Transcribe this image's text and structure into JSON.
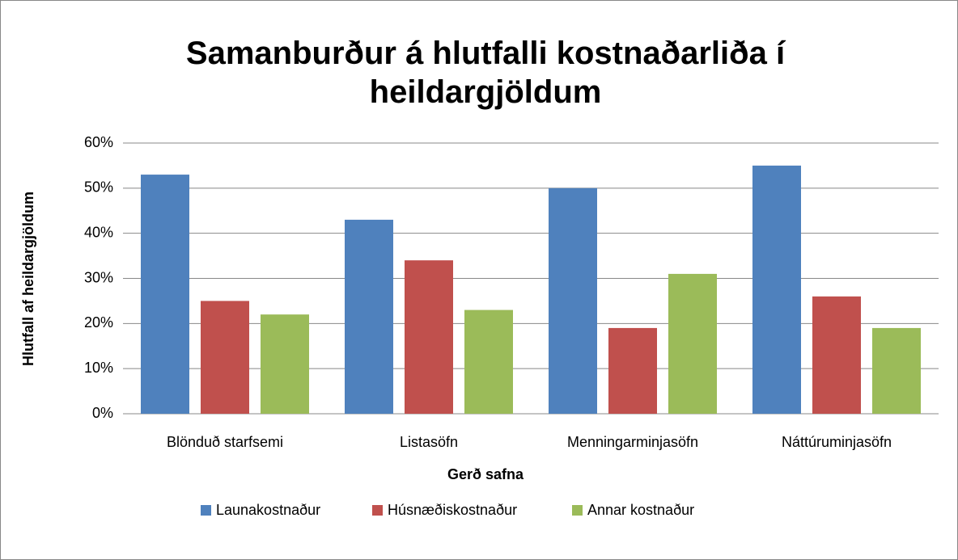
{
  "chart_data": {
    "type": "bar",
    "title": "Samanburður á hlutfalli kostnaðarliða í heildargjöldum",
    "xlabel": "Gerð safna",
    "ylabel": "Hlutfall af heildargjöldum",
    "categories": [
      "Blönduð starfsemi",
      "Listasöfn",
      "Menningarminjasöfn",
      "Náttúruminjasöfn"
    ],
    "series": [
      {
        "name": "Launakostnaður",
        "color": "#4f81bd",
        "values": [
          53,
          43,
          50,
          55
        ]
      },
      {
        "name": "Húsnæðiskostnaður",
        "color": "#c0504d",
        "values": [
          25,
          34,
          19,
          26
        ]
      },
      {
        "name": "Annar kostnaður",
        "color": "#9bbb59",
        "values": [
          22,
          23,
          31,
          19
        ]
      }
    ],
    "ylim": [
      0,
      60
    ],
    "yticks": [
      {
        "value": 0,
        "label": "0%"
      },
      {
        "value": 10,
        "label": "10%"
      },
      {
        "value": 20,
        "label": "20%"
      },
      {
        "value": 30,
        "label": "30%"
      },
      {
        "value": 40,
        "label": "40%"
      },
      {
        "value": 50,
        "label": "50%"
      },
      {
        "value": 60,
        "label": "60%"
      }
    ],
    "grid": true,
    "legend": "bottom"
  }
}
